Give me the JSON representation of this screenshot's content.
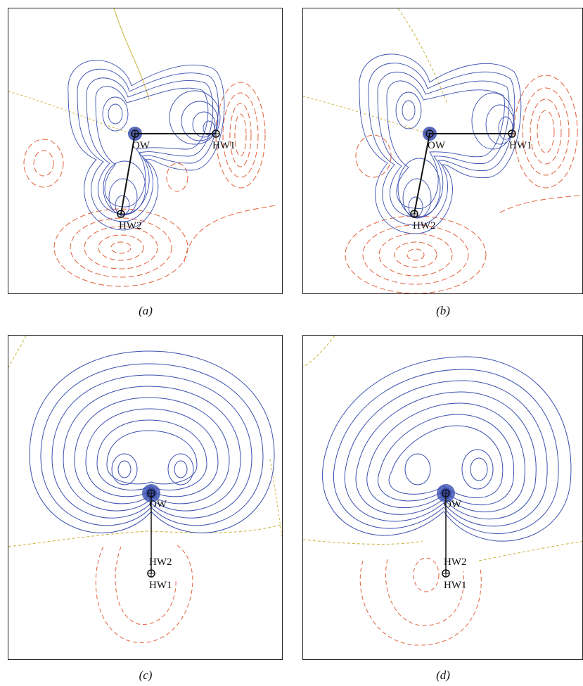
{
  "figure": {
    "panels": [
      {
        "id": "a",
        "caption": "(a)",
        "atoms": {
          "OW": "OW",
          "HW1": "HW1",
          "HW2": "HW2"
        }
      },
      {
        "id": "b",
        "caption": "(b)",
        "atoms": {
          "OW": "OW",
          "HW1": "HW1",
          "HW2": "HW2"
        }
      },
      {
        "id": "c",
        "caption": "(c)",
        "atoms": {
          "OW": "OW",
          "HW1": "HW1",
          "HW2": "HW2"
        }
      },
      {
        "id": "d",
        "caption": "(d)",
        "atoms": {
          "OW": "OW",
          "HW1": "HW1",
          "HW2": "HW2"
        }
      }
    ],
    "colors": {
      "positive_contour": "#3a4fb0",
      "negative_contour": "#e2603a",
      "zero_contour": "#c9b23a",
      "bond": "#111111",
      "frame": "#222222"
    }
  }
}
